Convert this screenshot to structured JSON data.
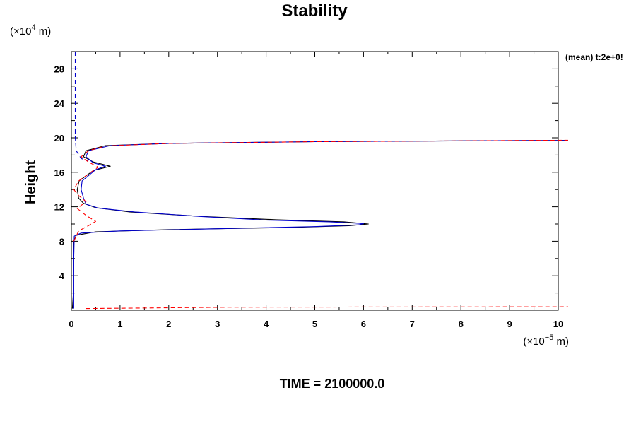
{
  "chart_data": {
    "type": "line",
    "title": "Stability",
    "ylabel": "Height",
    "y_unit_prefix": "(×10",
    "y_unit_exp": "4",
    "y_unit_suffix": " m)",
    "x_unit_prefix": "(×10",
    "x_unit_exp": "−5",
    "x_unit_suffix": " m)",
    "time_label": "TIME = 2100000.0",
    "legend_note": "(mean) t:2e+0!",
    "xlim": [
      0,
      10
    ],
    "ylim": [
      0,
      30
    ],
    "x_ticks": [
      "0",
      "1",
      "2",
      "3",
      "4",
      "5",
      "6",
      "7",
      "8",
      "9",
      "10"
    ],
    "y_ticks": [
      "4",
      "8",
      "12",
      "16",
      "20",
      "24",
      "28"
    ],
    "grid": false,
    "colors": {
      "black": "#000000",
      "blue": "#0000cc",
      "red": "#ff0000"
    },
    "series": [
      {
        "color": "#000000",
        "style": "solid",
        "points": [
          [
            0.02,
            0.2
          ],
          [
            0.04,
            2
          ],
          [
            0.05,
            6
          ],
          [
            0.05,
            8
          ],
          [
            0.1,
            8.7
          ],
          [
            0.5,
            9.1
          ],
          [
            2.0,
            9.35
          ],
          [
            4.5,
            9.6
          ],
          [
            5.7,
            9.8
          ],
          [
            6.1,
            10.0
          ],
          [
            5.6,
            10.25
          ],
          [
            4.2,
            10.5
          ],
          [
            2.6,
            10.9
          ],
          [
            1.2,
            11.4
          ],
          [
            0.5,
            11.9
          ],
          [
            0.25,
            12.4
          ],
          [
            0.15,
            13.0
          ],
          [
            0.12,
            14.0
          ],
          [
            0.16,
            15.0
          ],
          [
            0.45,
            16.2
          ],
          [
            0.8,
            16.7
          ],
          [
            0.45,
            17.2
          ],
          [
            0.25,
            17.8
          ],
          [
            0.3,
            18.5
          ],
          [
            0.7,
            19.1
          ],
          [
            2.0,
            19.35
          ],
          [
            5.0,
            19.55
          ],
          [
            8.0,
            19.65
          ],
          [
            10.2,
            19.7
          ]
        ]
      },
      {
        "color": "#0000cc",
        "style": "solid",
        "points": [
          [
            0.05,
            0.2
          ],
          [
            0.05,
            2
          ],
          [
            0.05,
            6
          ],
          [
            0.06,
            8.6
          ],
          [
            0.2,
            8.95
          ],
          [
            1.0,
            9.2
          ],
          [
            3.0,
            9.45
          ],
          [
            5.0,
            9.7
          ],
          [
            5.9,
            9.9
          ],
          [
            6.0,
            10.05
          ],
          [
            5.3,
            10.25
          ],
          [
            4.0,
            10.45
          ],
          [
            2.7,
            10.85
          ],
          [
            1.3,
            11.4
          ],
          [
            0.55,
            11.85
          ],
          [
            0.3,
            12.3
          ],
          [
            0.25,
            13.0
          ],
          [
            0.2,
            14.0
          ],
          [
            0.22,
            15.0
          ],
          [
            0.5,
            16.3
          ],
          [
            0.7,
            16.7
          ],
          [
            0.45,
            17.1
          ],
          [
            0.3,
            17.8
          ],
          [
            0.35,
            18.5
          ],
          [
            0.8,
            19.1
          ],
          [
            2.0,
            19.35
          ],
          [
            5.0,
            19.55
          ],
          [
            8.0,
            19.65
          ],
          [
            10.2,
            19.7
          ]
        ]
      },
      {
        "color": "#0000cc",
        "style": "dashed",
        "points": [
          [
            0.08,
            30
          ],
          [
            0.08,
            24
          ],
          [
            0.08,
            20
          ],
          [
            0.1,
            18.5
          ],
          [
            0.2,
            17.6
          ],
          [
            0.35,
            17.3
          ]
        ]
      },
      {
        "color": "#ff0000",
        "style": "dashed",
        "points": [
          [
            0.3,
            0.2
          ],
          [
            3.3,
            0.35
          ],
          [
            10.2,
            0.4
          ]
        ]
      },
      {
        "color": "#ff0000",
        "style": "dashed",
        "points": [
          [
            0.05,
            8
          ],
          [
            0.15,
            9.2
          ],
          [
            0.35,
            9.8
          ],
          [
            0.5,
            10.3
          ],
          [
            0.3,
            11.0
          ],
          [
            0.12,
            11.8
          ],
          [
            0.3,
            12.6
          ],
          [
            0.15,
            13.3
          ],
          [
            0.05,
            14.0
          ],
          [
            0.15,
            15.0
          ],
          [
            0.4,
            16.0
          ],
          [
            0.55,
            16.6
          ],
          [
            0.35,
            17.2
          ],
          [
            0.2,
            17.8
          ],
          [
            0.35,
            18.5
          ],
          [
            0.7,
            19.05
          ],
          [
            2.0,
            19.35
          ],
          [
            5.0,
            19.55
          ],
          [
            8.0,
            19.65
          ],
          [
            10.2,
            19.72
          ]
        ]
      }
    ]
  }
}
